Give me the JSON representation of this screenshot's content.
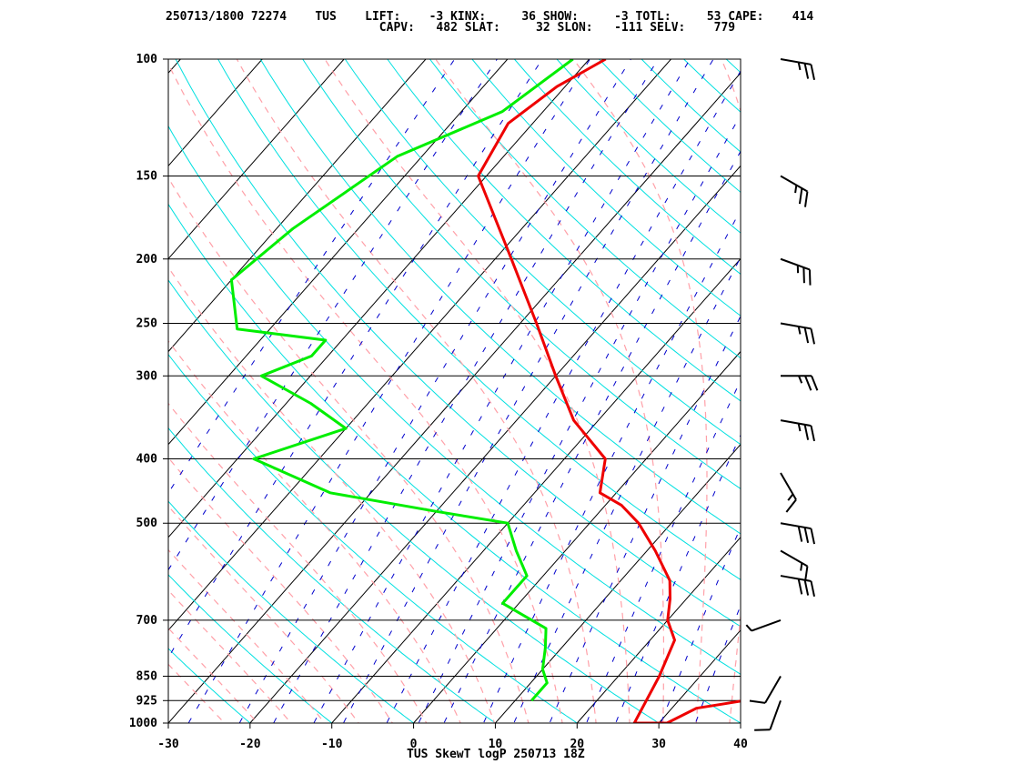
{
  "header": {
    "line1": "250713/1800 72274    TUS    LIFT:    -3 KINX:     36 SHOW:     -3 TOTL:     53 CAPE:    414",
    "line2": "                              CAPV:   482 SLAT:     32 SLON:   -111 SELV:    779"
  },
  "footer_label": "TUS SkewT logP 250713 18Z",
  "colors": {
    "temperature": "#ee0000",
    "dewpoint": "#00ee00",
    "isotherm": "#000000",
    "dry_adiabat": "#00e0e0",
    "moist_adiabat": "#ffa0a8",
    "mixing_ratio": "#0000cc",
    "barb": "#000000"
  },
  "chart_data": {
    "type": "skewt",
    "station": "TUS",
    "xlim": [
      -30,
      40
    ],
    "xticks": [
      -30,
      -20,
      -10,
      0,
      10,
      20,
      30,
      40
    ],
    "pressure_levels": [
      1000,
      925,
      850,
      700,
      500,
      400,
      300,
      250,
      200,
      150,
      100
    ],
    "pressure_range": [
      1000,
      100
    ],
    "temperature": [
      [
        925,
        38
      ],
      [
        935,
        36
      ],
      [
        950,
        33
      ],
      [
        1000,
        31
      ],
      [
        1000,
        27
      ],
      [
        850,
        25
      ],
      [
        750,
        23
      ],
      [
        700,
        20
      ],
      [
        650,
        18
      ],
      [
        610,
        16
      ],
      [
        550,
        11
      ],
      [
        500,
        6
      ],
      [
        470,
        2
      ],
      [
        450,
        -2
      ],
      [
        400,
        -5
      ],
      [
        350,
        -13
      ],
      [
        300,
        -20
      ],
      [
        250,
        -28
      ],
      [
        200,
        -38
      ],
      [
        150,
        -51
      ],
      [
        125,
        -53
      ],
      [
        110,
        -51
      ],
      [
        100,
        -48
      ]
    ],
    "dewpoint": [
      [
        925,
        12
      ],
      [
        870,
        12
      ],
      [
        830,
        10
      ],
      [
        770,
        8
      ],
      [
        720,
        6
      ],
      [
        660,
        -2
      ],
      [
        600,
        -2
      ],
      [
        550,
        -6
      ],
      [
        500,
        -10
      ],
      [
        480,
        -20
      ],
      [
        450,
        -35
      ],
      [
        400,
        -48
      ],
      [
        360,
        -40
      ],
      [
        330,
        -47
      ],
      [
        300,
        -56
      ],
      [
        280,
        -52
      ],
      [
        265,
        -52
      ],
      [
        255,
        -64
      ],
      [
        215,
        -70
      ],
      [
        180,
        -68
      ],
      [
        140,
        -63
      ],
      [
        120,
        -55
      ],
      [
        100,
        -52
      ]
    ],
    "wind_barbs": [
      {
        "p": 925,
        "dir": 200,
        "spd": 10
      },
      {
        "p": 850,
        "dir": 210,
        "spd": 10
      },
      {
        "p": 700,
        "dir": 250,
        "spd": 5
      },
      {
        "p": 600,
        "dir": 100,
        "spd": 30
      },
      {
        "p": 550,
        "dir": 120,
        "spd": 15
      },
      {
        "p": 500,
        "dir": 100,
        "spd": 30
      },
      {
        "p": 420,
        "dir": 150,
        "spd": 15
      },
      {
        "p": 350,
        "dir": 100,
        "spd": 25
      },
      {
        "p": 300,
        "dir": 90,
        "spd": 25
      },
      {
        "p": 250,
        "dir": 100,
        "spd": 25
      },
      {
        "p": 200,
        "dir": 110,
        "spd": 25
      },
      {
        "p": 150,
        "dir": 120,
        "spd": 25
      },
      {
        "p": 100,
        "dir": 100,
        "spd": 25
      }
    ],
    "grid": true
  }
}
